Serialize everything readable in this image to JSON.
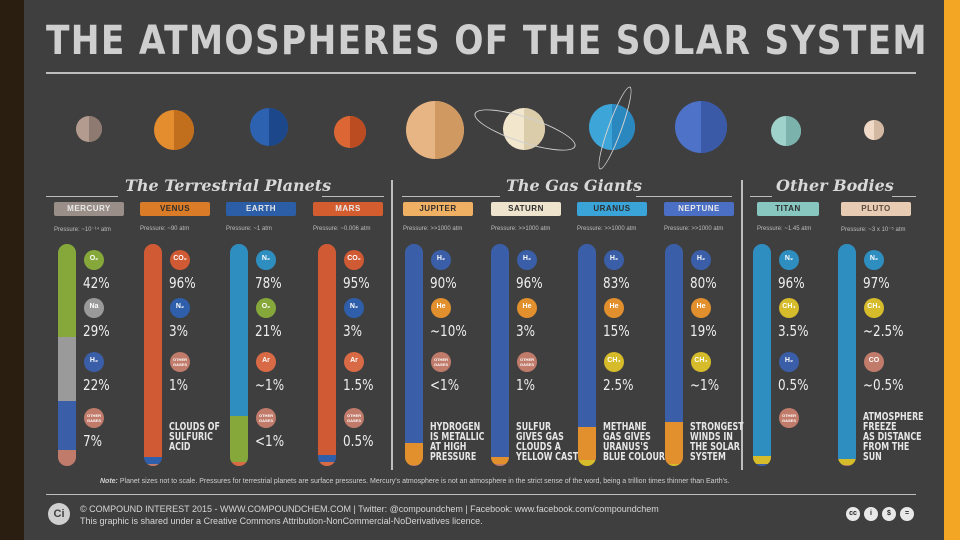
{
  "title": "THE ATMOSPHERES OF THE SOLAR SYSTEM",
  "sections": {
    "terrestrial": "The Terrestrial Planets",
    "gas": "The Gas Giants",
    "other": "Other Bodies"
  },
  "colors": {
    "background": "#3f3f40",
    "side_accent": "#f3a623"
  },
  "planets": [
    {
      "name": "MERCURY",
      "tag_color": "#9a8f88",
      "tag_text": "#e8e8e8",
      "planet_colors": [
        "#b49b90",
        "#8f7a72"
      ]
    },
    {
      "name": "VENUS",
      "tag_color": "#d97b27",
      "tag_text": "#2d2d2d",
      "planet_colors": [
        "#e38d2f",
        "#c16e1d"
      ]
    },
    {
      "name": "EARTH",
      "tag_color": "#2c5ea8",
      "tag_text": "#e8e8e8",
      "planet_colors": [
        "#2d62b0",
        "#1c478b"
      ]
    },
    {
      "name": "MARS",
      "tag_color": "#d45d30",
      "tag_text": "#e8e8e8",
      "planet_colors": [
        "#dc6734",
        "#bb4c22"
      ]
    },
    {
      "name": "JUPITER",
      "tag_color": "#f0b064",
      "tag_text": "#2d2d2d",
      "planet_colors": [
        "#e7b583",
        "#d09962"
      ]
    },
    {
      "name": "SATURN",
      "tag_color": "#eee3cc",
      "tag_text": "#2d2d2d",
      "planet_colors": [
        "#f2e6cc",
        "#dccdaa"
      ]
    },
    {
      "name": "URANUS",
      "tag_color": "#3aa3d8",
      "tag_text": "#2d2d2d",
      "planet_colors": [
        "#3ea5d8",
        "#2a88bf"
      ]
    },
    {
      "name": "NEPTUNE",
      "tag_color": "#4a6fc4",
      "tag_text": "#e8e8e8",
      "planet_colors": [
        "#4d72c8",
        "#3a5aa8"
      ]
    },
    {
      "name": "TITAN",
      "tag_color": "#88c6c0",
      "tag_text": "#2d2d2d",
      "planet_colors": [
        "#9fd2cb",
        "#7bb3ac"
      ]
    },
    {
      "name": "PLUTO",
      "tag_color": "#e8cbb3",
      "tag_text": "#5a4a40",
      "planet_colors": [
        "#f0d9c6",
        "#d4b9a2"
      ]
    }
  ],
  "pressures": [
    "Pressure: ~10⁻¹⁴ atm",
    "Pressure: ~90 atm",
    "Pressure: ~1 atm",
    "Pressure: ~0.006 atm",
    "Pressure: >>1000 atm",
    "Pressure: >>1000 atm",
    "Pressure: >>1000 atm",
    "Pressure: >>1000 atm",
    "Pressure: ~1.45 atm",
    "Pressure: ~3 x 10⁻⁵ atm"
  ],
  "composition": [
    [
      {
        "gas": "O₂",
        "pct": 42,
        "label": "42%",
        "color": "#86a83a"
      },
      {
        "gas": "Na",
        "pct": 29,
        "label": "29%",
        "color": "#9a9a9a"
      },
      {
        "gas": "H₂",
        "pct": 22,
        "label": "22%",
        "color": "#3b5ea8"
      },
      {
        "gas": "OTHER GASES",
        "pct": 7,
        "label": "7%",
        "color": "#c07b6a"
      }
    ],
    [
      {
        "gas": "CO₂",
        "pct": 96,
        "label": "96%",
        "color": "#d05a33"
      },
      {
        "gas": "N₂",
        "pct": 3,
        "label": "3%",
        "color": "#2f5faa"
      },
      {
        "gas": "OTHER GASES",
        "pct": 1,
        "label": "1%",
        "color": "#c07b6a"
      }
    ],
    [
      {
        "gas": "N₂",
        "pct": 78,
        "label": "78%",
        "color": "#2f8ec0"
      },
      {
        "gas": "O₂",
        "pct": 21,
        "label": "21%",
        "color": "#86a83a"
      },
      {
        "gas": "Ar",
        "pct": 1,
        "label": "~1%",
        "color": "#d86a45"
      },
      {
        "gas": "OTHER GASES",
        "pct": 0.5,
        "label": "<1%",
        "color": "#c07b6a"
      }
    ],
    [
      {
        "gas": "CO₂",
        "pct": 95,
        "label": "95%",
        "color": "#d05a33"
      },
      {
        "gas": "N₂",
        "pct": 3,
        "label": "3%",
        "color": "#2f5faa"
      },
      {
        "gas": "Ar",
        "pct": 1.5,
        "label": "1.5%",
        "color": "#d86a45"
      },
      {
        "gas": "OTHER GASES",
        "pct": 0.5,
        "label": "0.5%",
        "color": "#c07b6a"
      }
    ],
    [
      {
        "gas": "H₂",
        "pct": 90,
        "label": "90%",
        "color": "#3b5ea8"
      },
      {
        "gas": "He",
        "pct": 10,
        "label": "~10%",
        "color": "#e2902d"
      },
      {
        "gas": "OTHER GASES",
        "pct": 0.5,
        "label": "<1%",
        "color": "#c07b6a"
      }
    ],
    [
      {
        "gas": "H₂",
        "pct": 96,
        "label": "96%",
        "color": "#3b5ea8"
      },
      {
        "gas": "He",
        "pct": 3,
        "label": "3%",
        "color": "#e2902d"
      },
      {
        "gas": "OTHER GASES",
        "pct": 1,
        "label": "1%",
        "color": "#c07b6a"
      }
    ],
    [
      {
        "gas": "H₂",
        "pct": 83,
        "label": "83%",
        "color": "#3b5ea8"
      },
      {
        "gas": "He",
        "pct": 15,
        "label": "15%",
        "color": "#e2902d"
      },
      {
        "gas": "CH₄",
        "pct": 2.5,
        "label": "2.5%",
        "color": "#d6bb2a"
      }
    ],
    [
      {
        "gas": "H₂",
        "pct": 80,
        "label": "80%",
        "color": "#3b5ea8"
      },
      {
        "gas": "He",
        "pct": 19,
        "label": "19%",
        "color": "#e2902d"
      },
      {
        "gas": "CH₄",
        "pct": 1,
        "label": "~1%",
        "color": "#d6bb2a"
      }
    ],
    [
      {
        "gas": "N₂",
        "pct": 96,
        "label": "96%",
        "color": "#2f8ec0"
      },
      {
        "gas": "CH₄",
        "pct": 3.5,
        "label": "3.5%",
        "color": "#d6bb2a"
      },
      {
        "gas": "H₂",
        "pct": 0.5,
        "label": "0.5%",
        "color": "#3b5ea8"
      },
      {
        "gas": "OTHER GASES",
        "pct": 0.5,
        "label": "",
        "color": "#c07b6a"
      }
    ],
    [
      {
        "gas": "N₂",
        "pct": 97,
        "label": "97%",
        "color": "#2f8ec0"
      },
      {
        "gas": "CH₄",
        "pct": 2.5,
        "label": "~2.5%",
        "color": "#d6bb2a"
      },
      {
        "gas": "CO",
        "pct": 0.5,
        "label": "~0.5%",
        "color": "#c07b6a"
      }
    ]
  ],
  "badge_other": "OTHER GASES",
  "facts": [
    "",
    "CLOUDS OF\nSULFURIC\nACID",
    "",
    "",
    "HYDROGEN\nIS METALLIC\nAT HIGH\nPRESSURE",
    "SULFUR\nGIVES GAS\nCLOUDS A\nYELLOW CAST",
    "METHANE\nGAS GIVES\nURANUS'S\nBLUE COLOUR",
    "STRONGEST\nWINDS IN\nTHE SOLAR\nSYSTEM",
    "",
    "ATMOSPHERE\nFREEZE\nAS DISTANCE\nFROM THE\nSUN"
  ],
  "note_lead": "Note:",
  "note": "Planet sizes not to scale. Pressures for terrestrial planets are surface pressures. Mercury's atmosphere is not an atmosphere in the strict sense of the word, being a trillion times thinner than Earth's.",
  "footer": {
    "logo": "Ci",
    "line1": "© COMPOUND INTEREST 2015 - WWW.COMPOUNDCHEM.COM | Twitter: @compoundchem | Facebook: www.facebook.com/compoundchem",
    "line2": "This graphic is shared under a Creative Commons Attribution-NonCommercial-NoDerivatives licence.",
    "cc_icons": [
      "cc",
      "i",
      "$",
      "="
    ]
  }
}
